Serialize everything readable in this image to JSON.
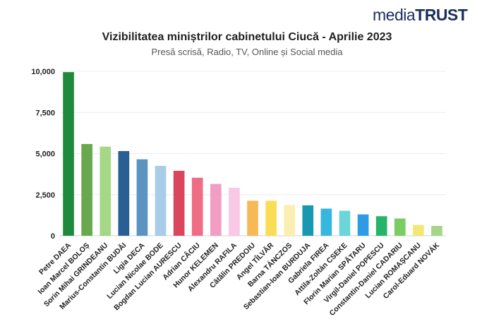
{
  "logo": {
    "part1": "media",
    "part2": "TRUST"
  },
  "chart_data": {
    "type": "bar",
    "title": "Vizibilitatea miniștrilor cabinetului Ciucă - Aprilie 2023",
    "subtitle": "Presă scrisă, Radio, TV, Online și Social media",
    "xlabel": "",
    "ylabel": "",
    "ylim": [
      0,
      10000
    ],
    "yticks": [
      0,
      2500,
      5000,
      7500,
      10000
    ],
    "ytick_labels": [
      "0",
      "2,500",
      "5,000",
      "7,500",
      "10,000"
    ],
    "grid": true,
    "categories": [
      "Petre DAEA",
      "Ioan Marcel BOLOȘ",
      "Sorin Mihai GRINDEANU",
      "Marius-Constantin BUDĂI",
      "Ligia DECA",
      "Lucian Nicolae BODE",
      "Bogdan Lucian AURESCU",
      "Adrian CÂCIU",
      "Hunor KELEMEN",
      "Alexandru RAFILA",
      "Cătălin PREDOIU",
      "Angel TÎLVĂR",
      "Barna TÁNCZOS",
      "Sebastian-Ioan BURDUJA",
      "Gabriela FIREA",
      "Attila-Zoltán CSEKE",
      "Florin Marian SPĂTARU",
      "Virgil-Daniel POPESCU",
      "Constantin-Daniel CADARIU",
      "Lucian ROMAȘCANU",
      "Carol-Eduard NOVÁK"
    ],
    "values": [
      9950,
      5580,
      5420,
      5150,
      4650,
      4250,
      3950,
      3530,
      3150,
      2920,
      2130,
      2130,
      1870,
      1850,
      1650,
      1520,
      1300,
      1190,
      1050,
      660,
      600
    ],
    "colors": [
      "#1e8a3c",
      "#6aa84f",
      "#a4d886",
      "#2a5f95",
      "#5d93c1",
      "#a9cde8",
      "#d9465e",
      "#ef6d84",
      "#f39dc3",
      "#f8c8e4",
      "#f7b955",
      "#f9dd55",
      "#faeeb0",
      "#1799b1",
      "#36b7e0",
      "#6ad6d9",
      "#2e9be6",
      "#26b36a",
      "#7bcc62",
      "#f3e776",
      "#a6d48a"
    ]
  }
}
